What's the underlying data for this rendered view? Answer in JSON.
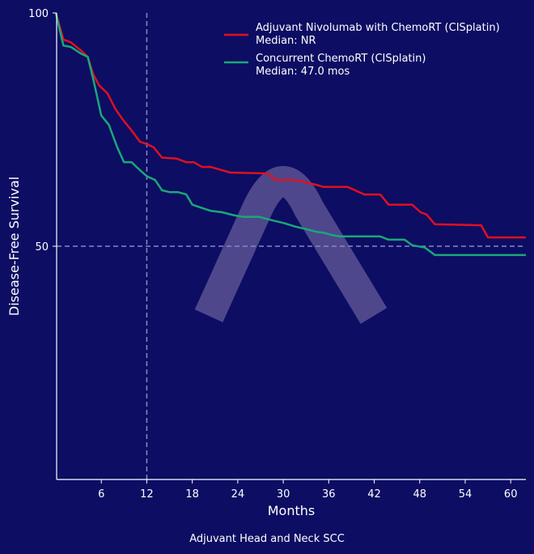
{
  "chart_data": {
    "type": "line",
    "title": "",
    "caption": "Adjuvant Head and Neck SCC",
    "xlabel": "Months",
    "ylabel": "Disease-Free Survival",
    "xlim": [
      0,
      62
    ],
    "ylim": [
      0,
      100
    ],
    "xticks": [
      6,
      12,
      18,
      24,
      30,
      36,
      42,
      48,
      54,
      60
    ],
    "yticks": [
      50,
      100
    ],
    "reference_lines": {
      "vertical_x": 12,
      "horizontal_y": 50
    },
    "grid": false,
    "legend_position": "top-right",
    "series": [
      {
        "name": "Adjuvant Nivolumab with ChemoRT (CISplatin)",
        "median": "Median: NR",
        "color": "#e0101e",
        "x": [
          0,
          1,
          2,
          3.3,
          4.2,
          4.9,
          5.7,
          6.8,
          7.9,
          8.9,
          9.9,
          11.1,
          12,
          12.9,
          14,
          15.9,
          17.2,
          18.2,
          19.3,
          20.4,
          21.9,
          23,
          27.9,
          29,
          31.6,
          34.3,
          35.3,
          38.5,
          40.7,
          42.8,
          43.9,
          47,
          48.1,
          48.9,
          50,
          56.1,
          57,
          62
        ],
        "y": [
          100,
          94.3,
          93.7,
          92,
          90.6,
          87,
          84.5,
          82.8,
          79.3,
          77,
          75,
          72.4,
          71.9,
          71.2,
          69,
          68.8,
          68,
          68,
          67,
          67,
          66.3,
          65.8,
          65.6,
          64.2,
          64.2,
          63.2,
          62.7,
          62.7,
          61.1,
          61.1,
          58.9,
          58.9,
          57.3,
          56.8,
          54.7,
          54.5,
          51.9,
          51.9
        ]
      },
      {
        "name": "Concurrent ChemoRT (CISplatin)",
        "median": "Median: 47.0 mos",
        "color": "#19a877",
        "x": [
          0,
          1,
          2,
          3.3,
          4.2,
          5,
          6,
          7,
          8.1,
          9,
          10,
          11.1,
          12,
          13.1,
          14,
          15,
          16.1,
          17.2,
          18,
          19.3,
          20.4,
          21.9,
          23.6,
          24.7,
          26.8,
          28.4,
          30,
          31.6,
          33.2,
          34.3,
          35.3,
          36.4,
          37.5,
          42.8,
          43.9,
          46,
          47,
          48.7,
          50,
          62
        ],
        "y": [
          100,
          93,
          92.7,
          91.3,
          90.6,
          85.4,
          78,
          76,
          71.2,
          68,
          68,
          66.3,
          65,
          64.2,
          62,
          61.6,
          61.6,
          61.1,
          58.9,
          58.2,
          57.6,
          57.3,
          56.6,
          56.3,
          56.3,
          55.6,
          55,
          54.2,
          53.6,
          53.1,
          52.9,
          52.4,
          52.1,
          52.1,
          51.4,
          51.4,
          50.2,
          49.7,
          48.1,
          48.1
        ]
      }
    ]
  }
}
